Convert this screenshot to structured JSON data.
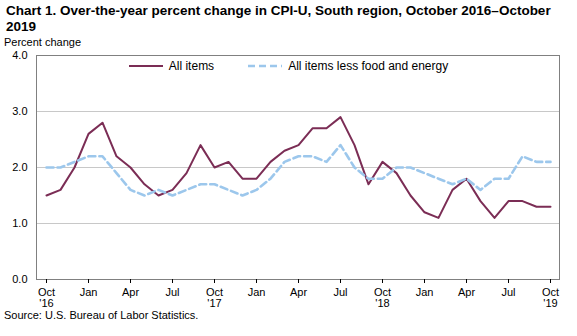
{
  "chart_data": {
    "type": "line",
    "title": "Chart 1. Over-the-year percent change in CPI-U, South region, October 2016–October 2019",
    "ylabel": "Percent change",
    "source": "Source: U.S. Bureau of Labor Statistics.",
    "categories": [
      "Oct\n'16",
      null,
      null,
      "Jan",
      null,
      null,
      "Apr",
      null,
      null,
      "Jul",
      null,
      null,
      "Oct\n'17",
      null,
      null,
      "Jan",
      null,
      null,
      "Apr",
      null,
      null,
      "Jul",
      null,
      null,
      "Oct\n'18",
      null,
      null,
      "Jan",
      null,
      null,
      "Apr",
      null,
      null,
      "Jul",
      null,
      null,
      "Oct\n'19"
    ],
    "series": [
      {
        "name": "All items",
        "color": "#7b2d55",
        "line_style": "solid",
        "values": [
          1.5,
          1.6,
          2.0,
          2.6,
          2.8,
          2.2,
          2.0,
          1.7,
          1.5,
          1.6,
          1.9,
          2.4,
          2.0,
          2.1,
          1.8,
          1.8,
          2.1,
          2.3,
          2.4,
          2.7,
          2.7,
          2.9,
          2.4,
          1.7,
          2.1,
          1.9,
          1.5,
          1.2,
          1.1,
          1.6,
          1.8,
          1.4,
          1.1,
          1.4,
          1.4,
          1.3,
          1.3
        ]
      },
      {
        "name": "All items less food and energy",
        "color": "#9cc7ec",
        "line_style": "dashed",
        "values": [
          2.0,
          2.0,
          2.1,
          2.2,
          2.2,
          1.9,
          1.6,
          1.5,
          1.6,
          1.5,
          1.6,
          1.7,
          1.7,
          1.6,
          1.5,
          1.6,
          1.8,
          2.1,
          2.2,
          2.2,
          2.1,
          2.4,
          2.0,
          1.8,
          1.8,
          2.0,
          2.0,
          1.9,
          1.8,
          1.7,
          1.8,
          1.6,
          1.8,
          1.8,
          2.2,
          2.1,
          2.1
        ]
      }
    ],
    "ylim": [
      0,
      4
    ],
    "yticks": [
      {
        "value": 0,
        "label": "0.0"
      },
      {
        "value": 1,
        "label": "1.0"
      },
      {
        "value": 2,
        "label": "2.0"
      },
      {
        "value": 3,
        "label": "3.0"
      },
      {
        "value": 4,
        "label": "4.0"
      }
    ],
    "grid": true,
    "legend": "top"
  }
}
